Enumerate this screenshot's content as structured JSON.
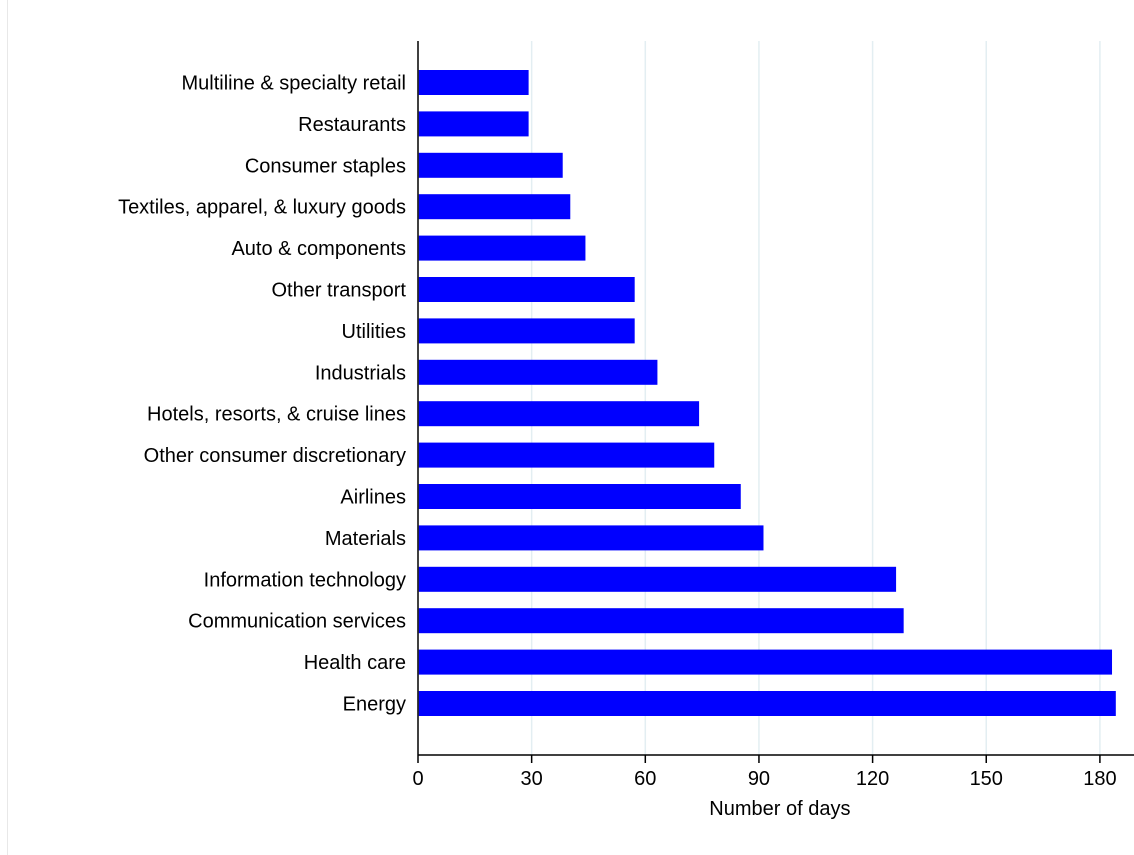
{
  "chart_data": {
    "type": "bar",
    "orientation": "horizontal",
    "categories": [
      "Multiline & specialty retail",
      "Restaurants",
      "Consumer staples",
      "Textiles, apparel, & luxury goods",
      "Auto & components",
      "Other transport",
      "Utilities",
      "Industrials",
      "Hotels, resorts, & cruise lines",
      "Other consumer discretionary",
      "Airlines",
      "Materials",
      "Information technology",
      "Communication services",
      "Health care",
      "Energy"
    ],
    "values": [
      29,
      29,
      38,
      40,
      44,
      57,
      57,
      63,
      74,
      78,
      85,
      91,
      126,
      128,
      183,
      184
    ],
    "xlabel": "Number of days",
    "ylabel": "",
    "xlim": [
      0,
      189
    ],
    "xticks": [
      0,
      30,
      60,
      90,
      120,
      150,
      180
    ],
    "xtick_labels": [
      "0",
      "30",
      "60",
      "90",
      "120",
      "150",
      "180"
    ],
    "grid": "vertical",
    "colors": {
      "bar": "#0000ff",
      "grid": "#e3eef2",
      "axis": "#000000"
    }
  }
}
